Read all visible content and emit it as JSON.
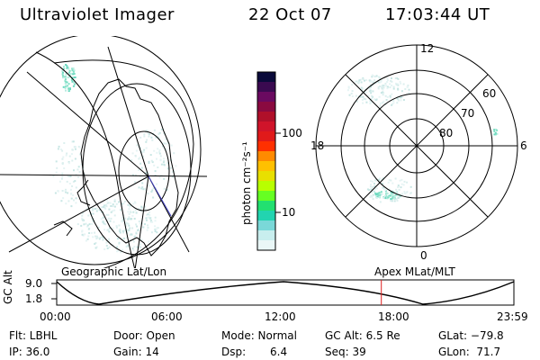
{
  "header": {
    "instrument": "Ultraviolet Imager",
    "date": "22 Oct 07",
    "time": "17:03:44 UT"
  },
  "colorbar": {
    "label": "photon cm⁻²s⁻¹",
    "ticks": [
      "100",
      "10"
    ],
    "colors": [
      "#0a0a3a",
      "#3a0a50",
      "#6a0a60",
      "#8a0a40",
      "#b0102a",
      "#d0142a",
      "#e01a1a",
      "#ff3000",
      "#ff8a00",
      "#ffc000",
      "#e8e000",
      "#b8ff00",
      "#66ff22",
      "#22e070",
      "#22d4b0",
      "#7ad8d8",
      "#c8eeee",
      "#eaf7f7"
    ]
  },
  "geo_map": {
    "label": "Geographic Lat/Lon",
    "aurora_color": "#6ad8c0"
  },
  "polar_map": {
    "label": "Apex MLat/MLT",
    "mlt_labels": [
      "12",
      "18",
      "6",
      "0"
    ],
    "mlat_labels": [
      "60",
      "70",
      "80"
    ],
    "aurora_color": "#6ad8c0"
  },
  "timeline": {
    "ylabel": "GC Alt",
    "y_ticks": [
      "9.0",
      "1.8"
    ],
    "x_ticks": [
      "00:00",
      "06:00",
      "12:00",
      "18:00",
      "23:59"
    ],
    "current_time_fraction": 0.71,
    "marker_color": "#e02020"
  },
  "status": {
    "flt": "Flt: LBHL",
    "ip": "IP: 36.0",
    "door": "Door: Open",
    "gain": "Gain: 14",
    "mode": "Mode: Normal",
    "dsp_label": "Dsp:",
    "dsp_value": "6.4",
    "gc_alt": "GC Alt: 6.5 Re",
    "seq": "Seq: 39",
    "glat": "GLat: −79.8",
    "glon": "GLon:  71.7"
  }
}
